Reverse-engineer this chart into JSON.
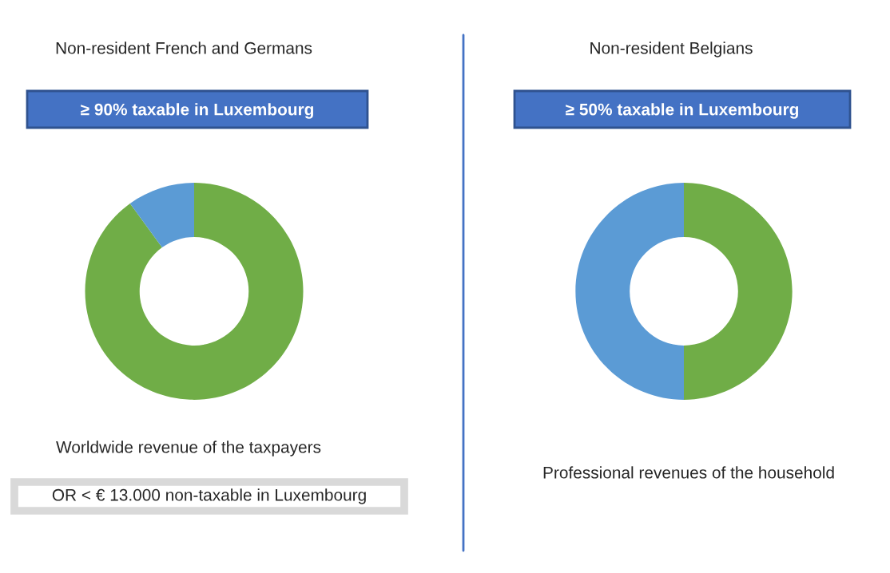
{
  "chart_data": [
    {
      "type": "donut",
      "title": "Non-resident French and Germans",
      "subtitle": "≥ 90% taxable in Luxembourg",
      "xlabel": "Worldwide revenue of the taxpayers",
      "categories": [
        null,
        null
      ],
      "values": [
        90,
        10
      ],
      "colors": [
        "#70ad47",
        "#5b9bd5"
      ],
      "annotations": [
        "OR < € 13.000 non-taxable in Luxembourg"
      ]
    },
    {
      "type": "donut",
      "title": "Non-resident Belgians",
      "subtitle": "≥ 50% taxable in Luxembourg",
      "xlabel": "Professional revenues of the household",
      "categories": [
        null,
        null
      ],
      "values": [
        50,
        50
      ],
      "colors": [
        "#70ad47",
        "#5b9bd5"
      ]
    }
  ]
}
